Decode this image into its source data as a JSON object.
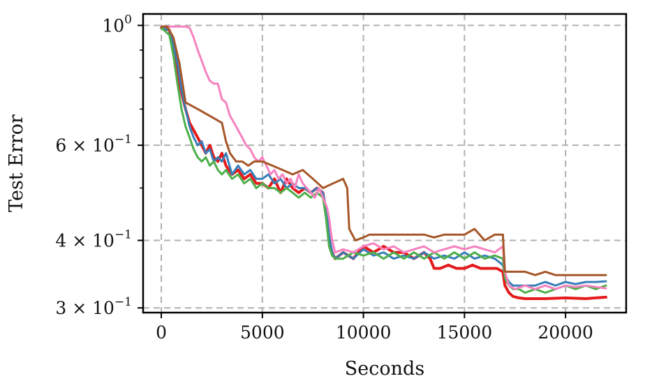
{
  "chart_data": {
    "type": "line",
    "title": "",
    "xlabel": "Seconds",
    "ylabel": "Test Error",
    "xlim": [
      -900,
      23000
    ],
    "ylim": [
      0.294,
      1.05
    ],
    "yscale": "log",
    "grid": true,
    "legend": "none",
    "x_ticks": [
      {
        "value": 0,
        "label": "0"
      },
      {
        "value": 5000,
        "label": "5000"
      },
      {
        "value": 10000,
        "label": "10000"
      },
      {
        "value": 15000,
        "label": "15000"
      },
      {
        "value": 20000,
        "label": "20000"
      }
    ],
    "y_ticks": [
      {
        "value": 1.0,
        "base": "10",
        "exp": "0"
      },
      {
        "value": 0.6,
        "base": "6 × 10",
        "exp": "−1"
      },
      {
        "value": 0.4,
        "base": "4 × 10",
        "exp": "−1"
      },
      {
        "value": 0.3,
        "base": "3 × 10",
        "exp": "−1"
      }
    ],
    "y_minor_ticks": [
      0.5,
      0.7,
      0.8,
      0.9
    ],
    "series": [
      {
        "color": "#e41a1c",
        "width": 4,
        "x": [
          0,
          400,
          600,
          800,
          1000,
          1200,
          1400,
          1600,
          1800,
          2000,
          2200,
          2400,
          2600,
          2800,
          3000,
          3200,
          3500,
          3800,
          4100,
          4400,
          4700,
          5000,
          5300,
          5600,
          5900,
          6200,
          6500,
          6800,
          7100,
          7400,
          7700,
          8000,
          8150,
          8300,
          8450,
          8600,
          9000,
          9500,
          10000,
          10500,
          11000,
          11500,
          12000,
          12500,
          13000,
          13300,
          13500,
          13800,
          14200,
          14600,
          15000,
          15400,
          15800,
          16200,
          16600,
          16900,
          17000,
          17200,
          17400,
          17700,
          18000,
          19000,
          20000,
          21000,
          21500,
          22000
        ],
        "y": [
          0.99,
          0.98,
          0.9,
          0.82,
          0.75,
          0.7,
          0.66,
          0.64,
          0.62,
          0.6,
          0.58,
          0.6,
          0.57,
          0.56,
          0.58,
          0.55,
          0.53,
          0.54,
          0.52,
          0.53,
          0.51,
          0.51,
          0.5,
          0.52,
          0.49,
          0.52,
          0.5,
          0.49,
          0.5,
          0.49,
          0.5,
          0.49,
          0.45,
          0.4,
          0.38,
          0.37,
          0.38,
          0.37,
          0.39,
          0.38,
          0.39,
          0.38,
          0.38,
          0.37,
          0.38,
          0.37,
          0.355,
          0.355,
          0.36,
          0.355,
          0.355,
          0.36,
          0.355,
          0.355,
          0.355,
          0.35,
          0.33,
          0.32,
          0.315,
          0.313,
          0.312,
          0.312,
          0.313,
          0.312,
          0.313,
          0.314
        ]
      },
      {
        "color": "#377eb8",
        "width": 3,
        "x": [
          0,
          400,
          600,
          800,
          1000,
          1200,
          1400,
          1600,
          1800,
          2000,
          2200,
          2400,
          2600,
          2800,
          3000,
          3200,
          3500,
          3800,
          4100,
          4400,
          4700,
          5000,
          5300,
          5600,
          5900,
          6200,
          6500,
          6800,
          7100,
          7400,
          7700,
          8000,
          8150,
          8300,
          8450,
          8600,
          9000,
          9500,
          10000,
          10500,
          11000,
          11500,
          12000,
          12500,
          13000,
          13500,
          14000,
          14500,
          15000,
          15500,
          16000,
          16500,
          16900,
          17000,
          17200,
          17400,
          17700,
          18000,
          18500,
          19000,
          19500,
          20000,
          20500,
          21000,
          21500,
          22000
        ],
        "y": [
          0.99,
          0.98,
          0.92,
          0.85,
          0.76,
          0.7,
          0.65,
          0.62,
          0.6,
          0.61,
          0.58,
          0.59,
          0.56,
          0.57,
          0.56,
          0.58,
          0.53,
          0.55,
          0.53,
          0.54,
          0.52,
          0.52,
          0.53,
          0.51,
          0.52,
          0.5,
          0.51,
          0.5,
          0.5,
          0.49,
          0.5,
          0.49,
          0.46,
          0.41,
          0.38,
          0.37,
          0.38,
          0.37,
          0.385,
          0.375,
          0.38,
          0.37,
          0.375,
          0.37,
          0.38,
          0.37,
          0.375,
          0.37,
          0.38,
          0.37,
          0.375,
          0.37,
          0.36,
          0.345,
          0.335,
          0.33,
          0.33,
          0.33,
          0.33,
          0.335,
          0.33,
          0.335,
          0.332,
          0.335,
          0.335,
          0.336
        ]
      },
      {
        "color": "#4daf4a",
        "width": 3,
        "x": [
          0,
          400,
          600,
          800,
          1000,
          1200,
          1400,
          1600,
          1800,
          2000,
          2200,
          2400,
          2600,
          2800,
          3000,
          3200,
          3500,
          3800,
          4100,
          4400,
          4700,
          5000,
          5300,
          5600,
          5900,
          6200,
          6500,
          6800,
          7100,
          7400,
          7700,
          8000,
          8150,
          8300,
          8450,
          8600,
          9000,
          9500,
          10000,
          10500,
          11000,
          11500,
          12000,
          12500,
          13000,
          13500,
          14000,
          14500,
          15000,
          15500,
          16000,
          16500,
          16900,
          17000,
          17200,
          17400,
          17700,
          18000,
          18500,
          19000,
          19500,
          20000,
          20500,
          21000,
          21500,
          22000
        ],
        "y": [
          0.99,
          0.96,
          0.88,
          0.78,
          0.7,
          0.65,
          0.62,
          0.59,
          0.57,
          0.56,
          0.57,
          0.55,
          0.56,
          0.54,
          0.53,
          0.54,
          0.52,
          0.53,
          0.51,
          0.52,
          0.5,
          0.51,
          0.5,
          0.5,
          0.49,
          0.5,
          0.49,
          0.48,
          0.49,
          0.48,
          0.49,
          0.48,
          0.44,
          0.39,
          0.375,
          0.37,
          0.37,
          0.38,
          0.375,
          0.38,
          0.37,
          0.38,
          0.37,
          0.38,
          0.37,
          0.38,
          0.37,
          0.38,
          0.37,
          0.38,
          0.37,
          0.375,
          0.37,
          0.34,
          0.33,
          0.325,
          0.325,
          0.32,
          0.325,
          0.32,
          0.325,
          0.33,
          0.325,
          0.33,
          0.325,
          0.33
        ]
      },
      {
        "color": "#f781bf",
        "width": 3,
        "x": [
          0,
          500,
          800,
          1000,
          1200,
          1400,
          1600,
          1800,
          2000,
          2200,
          2400,
          2600,
          2800,
          3000,
          3200,
          3400,
          3600,
          3800,
          4000,
          4200,
          4400,
          4600,
          4800,
          5000,
          5200,
          5400,
          5600,
          5800,
          6000,
          6200,
          6400,
          6600,
          6800,
          7000,
          7200,
          7400,
          7600,
          7800,
          8000,
          8200,
          8300,
          8450,
          8600,
          9000,
          9500,
          10000,
          10500,
          11000,
          11500,
          12000,
          12500,
          13000,
          13500,
          14000,
          14500,
          15000,
          15500,
          16000,
          16500,
          16900,
          17000,
          17200,
          17500,
          18000,
          18500,
          19000,
          19500,
          20000,
          20500,
          21000,
          21500,
          22000
        ],
        "y": [
          0.995,
          0.995,
          0.995,
          0.995,
          0.995,
          0.99,
          0.95,
          0.9,
          0.86,
          0.82,
          0.79,
          0.78,
          0.78,
          0.73,
          0.72,
          0.68,
          0.66,
          0.64,
          0.62,
          0.6,
          0.59,
          0.57,
          0.56,
          0.57,
          0.55,
          0.53,
          0.54,
          0.52,
          0.53,
          0.51,
          0.52,
          0.5,
          0.53,
          0.51,
          0.5,
          0.49,
          0.48,
          0.5,
          0.48,
          0.46,
          0.44,
          0.4,
          0.38,
          0.385,
          0.38,
          0.39,
          0.395,
          0.385,
          0.39,
          0.38,
          0.385,
          0.39,
          0.38,
          0.385,
          0.39,
          0.385,
          0.39,
          0.385,
          0.38,
          0.39,
          0.35,
          0.33,
          0.325,
          0.33,
          0.325,
          0.33,
          0.325,
          0.33,
          0.328,
          0.33,
          0.328,
          0.326
        ]
      },
      {
        "color": "#a65628",
        "width": 3,
        "x": [
          0,
          300,
          600,
          900,
          1200,
          1500,
          1800,
          2100,
          2400,
          2700,
          3000,
          3200,
          3400,
          3700,
          4000,
          4300,
          4600,
          5000,
          5500,
          6000,
          6500,
          7000,
          7500,
          8000,
          8500,
          9000,
          9200,
          9300,
          9600,
          10000,
          10300,
          10600,
          11000,
          11500,
          12000,
          12500,
          13000,
          13500,
          14000,
          14500,
          15000,
          15500,
          16000,
          16500,
          16900,
          17000,
          17200,
          17500,
          18000,
          18500,
          19000,
          19500,
          20000,
          20500,
          21000,
          21500,
          22000
        ],
        "y": [
          0.995,
          0.995,
          0.95,
          0.85,
          0.72,
          0.71,
          0.7,
          0.69,
          0.68,
          0.67,
          0.66,
          0.61,
          0.58,
          0.56,
          0.56,
          0.55,
          0.56,
          0.56,
          0.55,
          0.54,
          0.53,
          0.54,
          0.52,
          0.5,
          0.51,
          0.52,
          0.5,
          0.42,
          0.4,
          0.405,
          0.41,
          0.41,
          0.41,
          0.41,
          0.41,
          0.41,
          0.41,
          0.405,
          0.41,
          0.41,
          0.41,
          0.42,
          0.4,
          0.41,
          0.41,
          0.35,
          0.35,
          0.35,
          0.35,
          0.345,
          0.35,
          0.345,
          0.345,
          0.345,
          0.345,
          0.345,
          0.345
        ]
      }
    ]
  }
}
